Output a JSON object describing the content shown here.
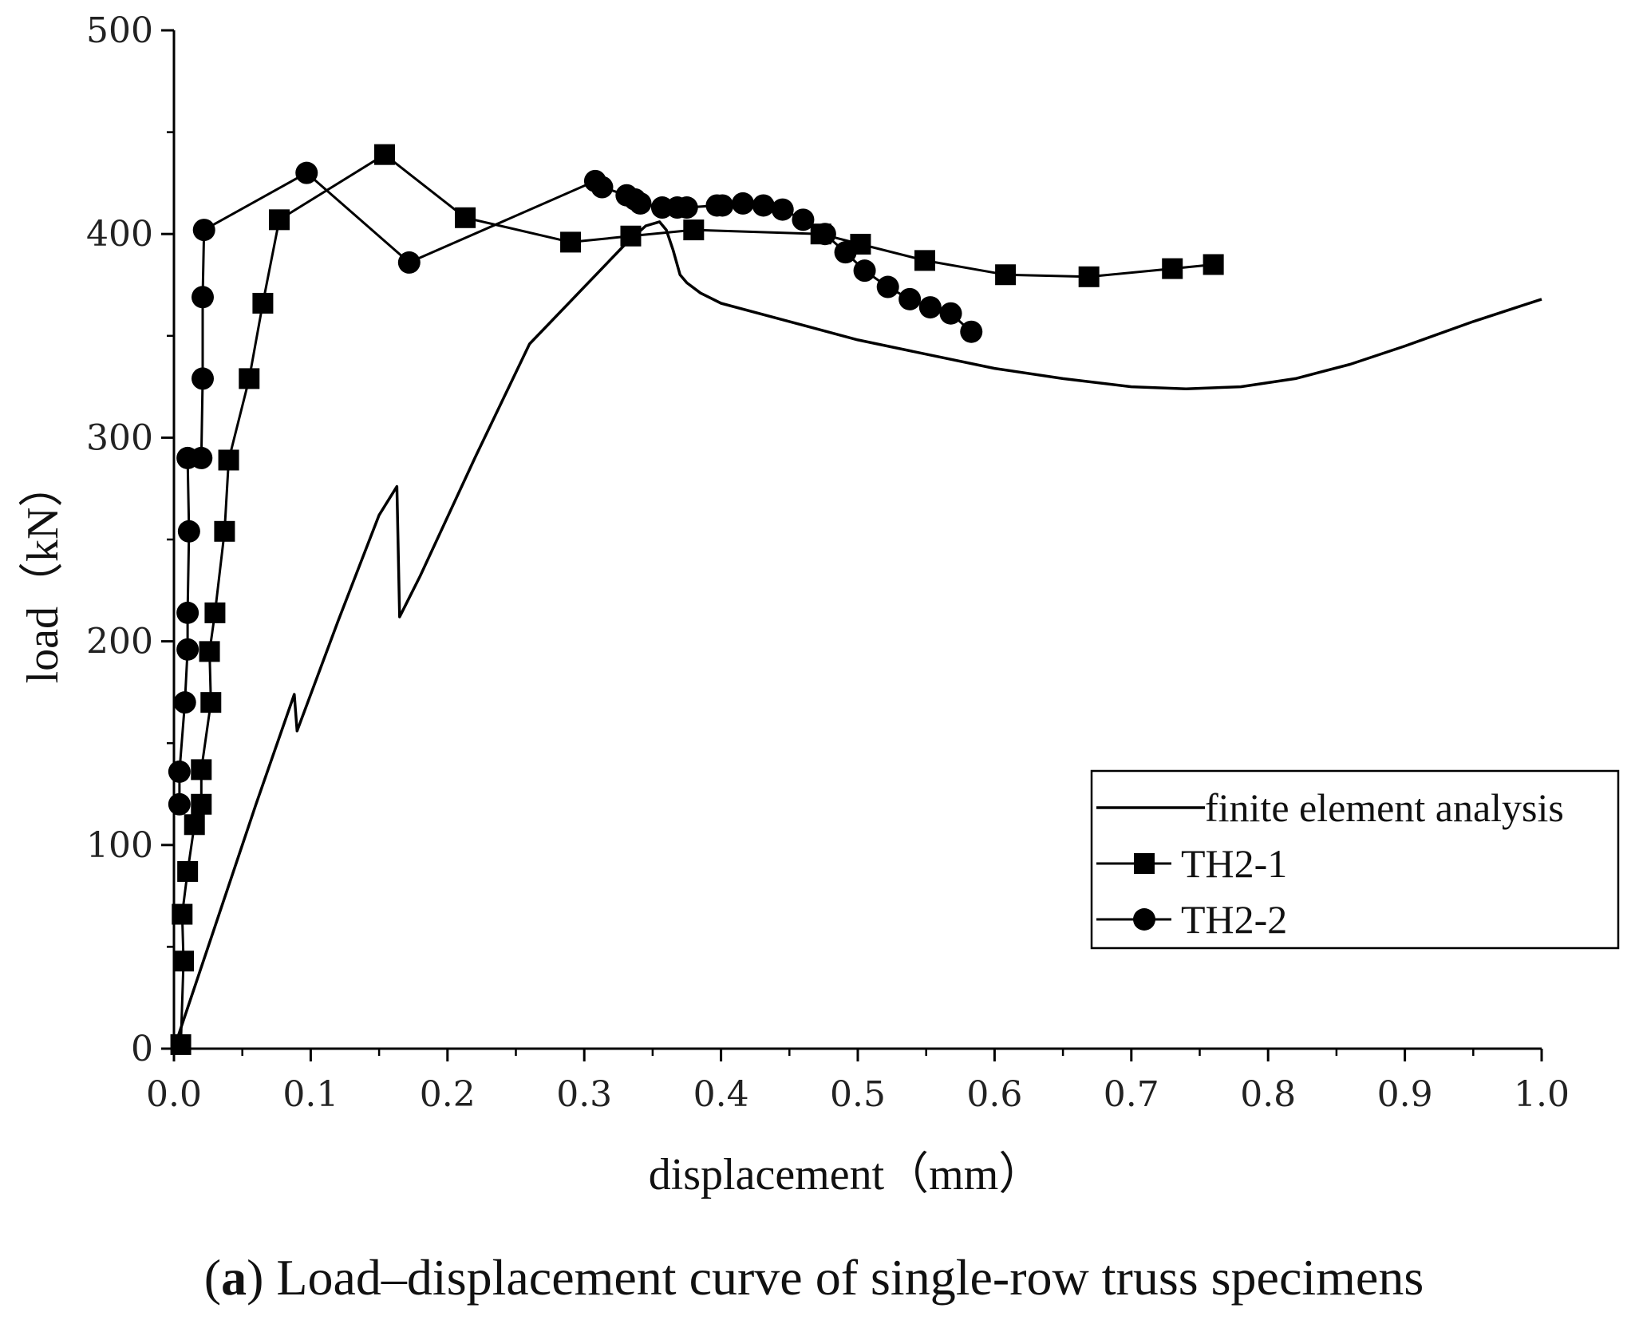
{
  "chart_data": {
    "type": "line",
    "xlabel": "displacement（mm）",
    "ylabel": "load（kN）",
    "xlim": [
      0.0,
      1.0
    ],
    "ylim": [
      0,
      500
    ],
    "x_ticks": [
      {
        "value": 0.0,
        "label": "0.0"
      },
      {
        "value": 0.1,
        "label": "0.1"
      },
      {
        "value": 0.2,
        "label": "0.2"
      },
      {
        "value": 0.3,
        "label": "0.3"
      },
      {
        "value": 0.4,
        "label": "0.4"
      },
      {
        "value": 0.5,
        "label": "0.5"
      },
      {
        "value": 0.6,
        "label": "0.6"
      },
      {
        "value": 0.7,
        "label": "0.7"
      },
      {
        "value": 0.8,
        "label": "0.8"
      },
      {
        "value": 0.9,
        "label": "0.9"
      },
      {
        "value": 1.0,
        "label": "1.0"
      }
    ],
    "y_ticks": [
      {
        "value": 0,
        "label": "0"
      },
      {
        "value": 100,
        "label": "100"
      },
      {
        "value": 200,
        "label": "200"
      },
      {
        "value": 300,
        "label": "300"
      },
      {
        "value": 400,
        "label": "400"
      },
      {
        "value": 500,
        "label": "500"
      }
    ],
    "grid": false,
    "legend_position": "bottom-right",
    "series": [
      {
        "name": "finite element analysis",
        "marker": "none",
        "x": [
          0.0,
          0.03,
          0.06,
          0.088,
          0.09,
          0.12,
          0.15,
          0.163,
          0.165,
          0.18,
          0.22,
          0.26,
          0.3,
          0.33,
          0.345,
          0.355,
          0.36,
          0.365,
          0.37,
          0.375,
          0.385,
          0.4,
          0.45,
          0.5,
          0.55,
          0.6,
          0.65,
          0.7,
          0.74,
          0.78,
          0.82,
          0.86,
          0.9,
          0.95,
          1.0
        ],
        "y": [
          0,
          60,
          120,
          174,
          156,
          210,
          262,
          276,
          212,
          232,
          290,
          346,
          374,
          395,
          404,
          406,
          402,
          392,
          380,
          376,
          371,
          366,
          357,
          348,
          341,
          334,
          329,
          325,
          324,
          325,
          329,
          336,
          345,
          357,
          368
        ]
      },
      {
        "name": "TH2-1",
        "marker": "square",
        "x": [
          0.005,
          0.007,
          0.006,
          0.01,
          0.015,
          0.02,
          0.02,
          0.027,
          0.026,
          0.03,
          0.037,
          0.04,
          0.055,
          0.065,
          0.077,
          0.154,
          0.213,
          0.29,
          0.334,
          0.38,
          0.473,
          0.502,
          0.549,
          0.608,
          0.669,
          0.73,
          0.76
        ],
        "y": [
          2,
          43,
          66,
          87,
          110,
          120,
          137,
          170,
          195,
          214,
          254,
          289,
          329,
          366,
          407,
          439,
          408,
          396,
          399,
          402,
          400,
          395,
          387,
          380,
          379,
          383,
          385
        ]
      },
      {
        "name": "TH2-2",
        "marker": "circle",
        "x": [
          0.004,
          0.004,
          0.008,
          0.01,
          0.01,
          0.011,
          0.01,
          0.02,
          0.021,
          0.021,
          0.022,
          0.097,
          0.172,
          0.308,
          0.313,
          0.331,
          0.337,
          0.341,
          0.357,
          0.368,
          0.375,
          0.397,
          0.401,
          0.416,
          0.431,
          0.445,
          0.46,
          0.476,
          0.491,
          0.505,
          0.522,
          0.538,
          0.553,
          0.568,
          0.583
        ],
        "y": [
          120,
          136,
          170,
          196,
          214,
          254,
          290,
          290,
          329,
          369,
          402,
          430,
          386,
          426,
          423,
          419,
          417,
          415,
          413,
          413,
          413,
          414,
          414,
          415,
          414,
          412,
          407,
          400,
          391,
          382,
          374,
          368,
          364,
          361,
          352
        ]
      }
    ]
  },
  "caption": {
    "label": "a",
    "text": "Load–displacement curve of single-row truss specimens"
  }
}
